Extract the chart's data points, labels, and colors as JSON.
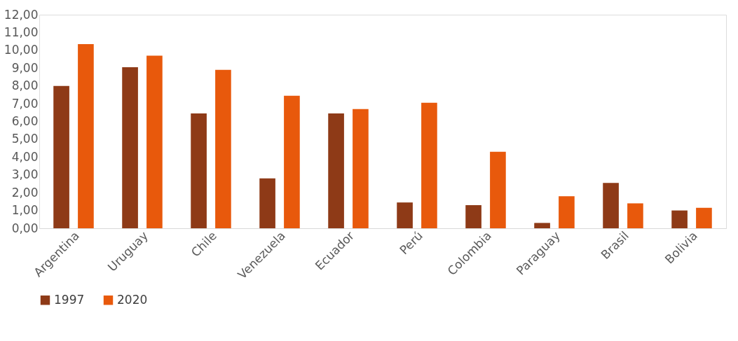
{
  "chart_data": {
    "type": "bar",
    "categories": [
      "Argentina",
      "Uruguay",
      "Chile",
      "Venezuela",
      "Ecuador",
      "Perú",
      "Colombia",
      "Paraguay",
      "Brasil",
      "Bolivia"
    ],
    "series": [
      {
        "name": "1997",
        "color": "#8e3a17",
        "values": [
          8.0,
          9.05,
          6.45,
          2.8,
          6.45,
          1.45,
          1.3,
          0.3,
          2.55,
          1.0
        ]
      },
      {
        "name": "2020",
        "color": "#e8590c",
        "values": [
          10.35,
          9.7,
          8.9,
          7.45,
          6.7,
          7.05,
          4.3,
          1.8,
          1.4,
          1.15
        ]
      }
    ],
    "ylim": [
      0,
      12
    ],
    "yticks": [
      {
        "value": 0,
        "label": "0,00"
      },
      {
        "value": 1,
        "label": "1,00"
      },
      {
        "value": 2,
        "label": "2,00"
      },
      {
        "value": 3,
        "label": "3,00"
      },
      {
        "value": 4,
        "label": "4,00"
      },
      {
        "value": 5,
        "label": "5,00"
      },
      {
        "value": 6,
        "label": "6,00"
      },
      {
        "value": 7,
        "label": "7,00"
      },
      {
        "value": 8,
        "label": "8,00"
      },
      {
        "value": 9,
        "label": "9,00"
      },
      {
        "value": 10,
        "label": "10,00"
      },
      {
        "value": 11,
        "label": "11,00"
      },
      {
        "value": 12,
        "label": "12,00"
      }
    ],
    "grid": false,
    "legend": "bottom"
  }
}
